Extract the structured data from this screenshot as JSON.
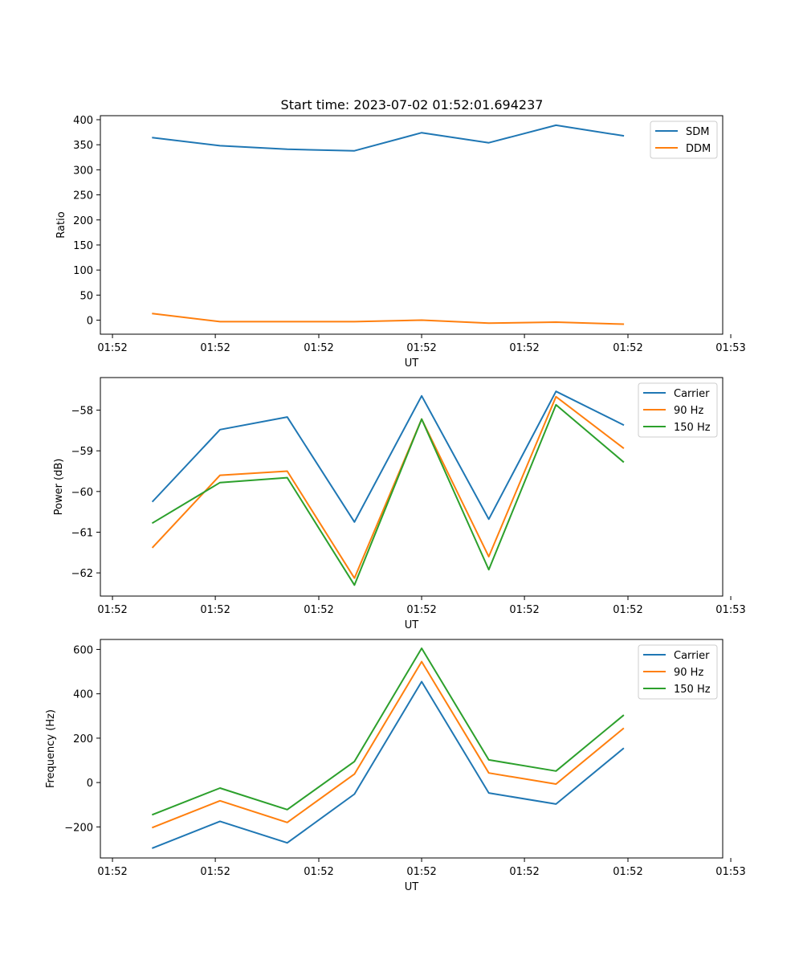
{
  "figure": {
    "title": "Start time: 2023-07-02 01:52:01.694237"
  },
  "colors": {
    "blue": "#1f77b4",
    "orange": "#ff7f0e",
    "green": "#2ca02c"
  },
  "chart_data": [
    {
      "type": "line",
      "title": "Start time: 2023-07-02 01:52:01.694237",
      "xlabel": "UT",
      "ylabel": "Ratio",
      "xlim": [
        -0.78,
        8.48
      ],
      "ylim": [
        -28,
        408
      ],
      "xticks": [
        -0.6,
        0.93,
        2.47,
        4.0,
        5.53,
        7.07,
        8.6
      ],
      "xtick_labels": [
        "01:52",
        "01:52",
        "01:52",
        "01:52",
        "01:52",
        "01:52",
        "01:53"
      ],
      "yticks": [
        0,
        50,
        100,
        150,
        200,
        250,
        300,
        350,
        400
      ],
      "ytick_labels": [
        "0",
        "50",
        "100",
        "150",
        "200",
        "250",
        "300",
        "350",
        "400"
      ],
      "x": [
        0,
        1,
        2,
        3,
        4,
        5,
        6,
        7
      ],
      "series": [
        {
          "name": "SDM",
          "color": "#1f77b4",
          "values": [
            364,
            348,
            341,
            338,
            374,
            354,
            389,
            368
          ]
        },
        {
          "name": "DDM",
          "color": "#ff7f0e",
          "values": [
            13,
            -3,
            -3,
            -3,
            0,
            -6,
            -4,
            -8
          ]
        }
      ],
      "legend": "top-right"
    },
    {
      "type": "line",
      "title": "",
      "xlabel": "UT",
      "ylabel": "Power (dB)",
      "xlim": [
        -0.78,
        8.48
      ],
      "ylim": [
        -62.57,
        -57.2
      ],
      "xticks": [
        -0.6,
        0.93,
        2.47,
        4.0,
        5.53,
        7.07,
        8.6
      ],
      "xtick_labels": [
        "01:52",
        "01:52",
        "01:52",
        "01:52",
        "01:52",
        "01:52",
        "01:53"
      ],
      "yticks": [
        -62,
        -61,
        -60,
        -59,
        -58
      ],
      "ytick_labels": [
        "−62",
        "−61",
        "−60",
        "−59",
        "−58"
      ],
      "x": [
        0,
        1,
        2,
        3,
        4,
        5,
        6,
        7
      ],
      "series": [
        {
          "name": "Carrier",
          "color": "#1f77b4",
          "values": [
            -60.24,
            -58.48,
            -58.17,
            -60.75,
            -57.65,
            -60.68,
            -57.54,
            -58.36
          ]
        },
        {
          "name": "90 Hz",
          "color": "#ff7f0e",
          "values": [
            -61.37,
            -59.6,
            -59.5,
            -62.13,
            -58.22,
            -61.6,
            -57.67,
            -58.93
          ]
        },
        {
          "name": "150 Hz",
          "color": "#2ca02c",
          "values": [
            -60.77,
            -59.78,
            -59.66,
            -62.3,
            -58.22,
            -61.92,
            -57.87,
            -59.27
          ]
        }
      ],
      "legend": "top-right"
    },
    {
      "type": "line",
      "title": "",
      "xlabel": "UT",
      "ylabel": "Frequency (Hz)",
      "xlim": [
        -0.78,
        8.48
      ],
      "ylim": [
        -340,
        645
      ],
      "xticks": [
        -0.6,
        0.93,
        2.47,
        4.0,
        5.53,
        7.07,
        8.6
      ],
      "xtick_labels": [
        "01:52",
        "01:52",
        "01:52",
        "01:52",
        "01:52",
        "01:52",
        "01:53"
      ],
      "yticks": [
        -200,
        0,
        200,
        400,
        600
      ],
      "ytick_labels": [
        "−200",
        "0",
        "200",
        "400",
        "600"
      ],
      "x": [
        0,
        1,
        2,
        3,
        4,
        5,
        6,
        7
      ],
      "series": [
        {
          "name": "Carrier",
          "color": "#1f77b4",
          "values": [
            -295,
            -175,
            -272,
            -52,
            455,
            -47,
            -97,
            153
          ]
        },
        {
          "name": "90 Hz",
          "color": "#ff7f0e",
          "values": [
            -202,
            -82,
            -180,
            38,
            545,
            43,
            -7,
            243
          ]
        },
        {
          "name": "150 Hz",
          "color": "#2ca02c",
          "values": [
            -144,
            -25,
            -122,
            95,
            605,
            102,
            52,
            302
          ]
        }
      ],
      "legend": "top-right"
    }
  ]
}
